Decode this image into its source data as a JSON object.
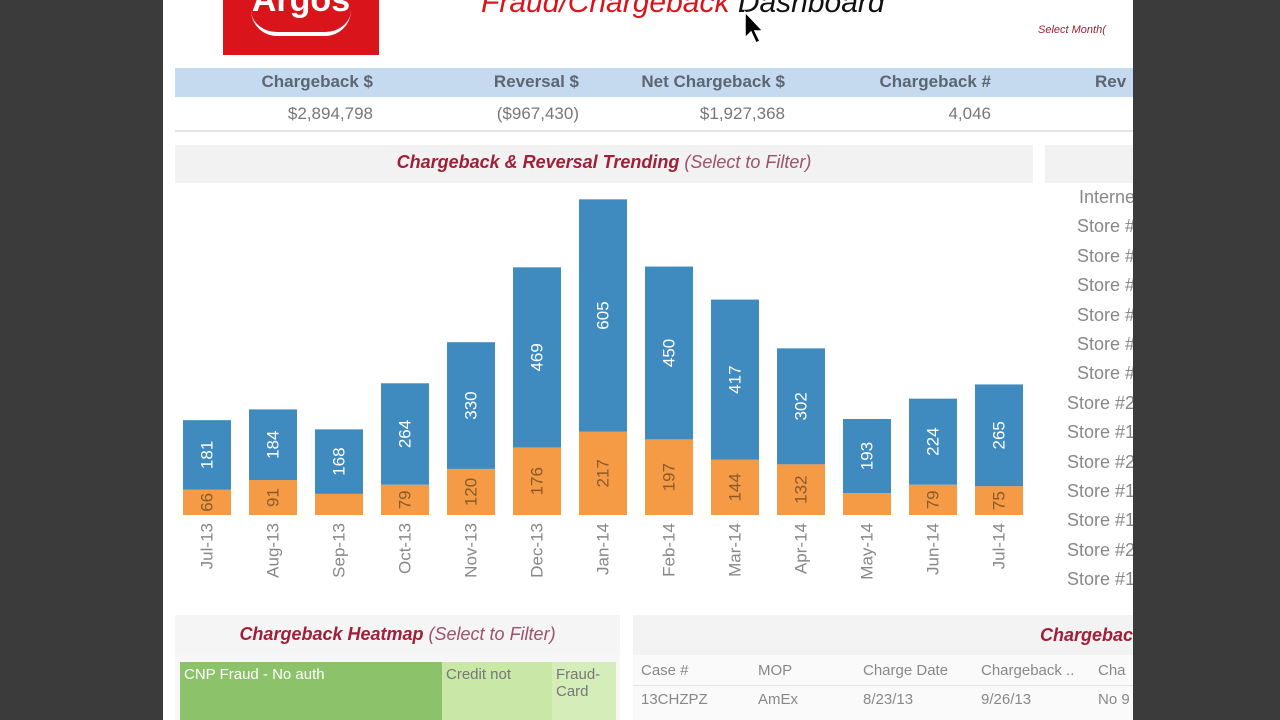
{
  "header": {
    "logo_text": "Argos",
    "title_red": "Fraud/Chargeback",
    "title_black": "Dashboard",
    "select_month": "Select Month("
  },
  "kpis": [
    {
      "label": "Chargeback $",
      "value": "$2,894,798"
    },
    {
      "label": "Reversal $",
      "value": "($967,430)"
    },
    {
      "label": "Net Chargeback $",
      "value": "$1,927,368"
    },
    {
      "label": "Chargeback #",
      "value": "4,046"
    },
    {
      "label": "Rev",
      "value": ""
    }
  ],
  "trend_panel": {
    "title": "Chargeback & Reversal Trending",
    "subtitle": "(Select to Filter)"
  },
  "colors": {
    "chargeback": "#3f8abf",
    "reversal": "#f59a45",
    "brand": "#d9141b",
    "title": "#a0203a"
  },
  "chart_data": {
    "type": "bar",
    "stacked": true,
    "categories": [
      "Jul-13",
      "Aug-13",
      "Sep-13",
      "Oct-13",
      "Nov-13",
      "Dec-13",
      "Jan-14",
      "Feb-14",
      "Mar-14",
      "Apr-14",
      "May-14",
      "Jun-14",
      "Jul-14"
    ],
    "series": [
      {
        "values": [
          66,
          91,
          55,
          79,
          120,
          176,
          217,
          197,
          144,
          132,
          57,
          79,
          75
        ],
        "color": "#f59a45"
      },
      {
        "values": [
          181,
          184,
          168,
          264,
          330,
          469,
          605,
          450,
          417,
          302,
          193,
          224,
          265
        ],
        "color": "#3f8abf"
      }
    ],
    "grid": false
  },
  "store_list": [
    "Interne",
    "Store #",
    "Store #",
    "Store #",
    "Store #",
    "Store #",
    "Store #",
    "Store #2",
    "Store #1",
    "Store #2",
    "Store #1",
    "Store #1",
    "Store #2",
    "Store #1"
  ],
  "heatmap": {
    "title": "Chargeback Heatmap",
    "subtitle": "(Select to Filter)",
    "cells": [
      {
        "label": "CNP Fraud - No auth",
        "color": "#8cc26a"
      },
      {
        "label": "Credit not",
        "color": "#c9e7a6"
      },
      {
        "label": "Fraud-Card",
        "color": "#d5edb8"
      }
    ]
  },
  "case_table": {
    "title": "Chargebac",
    "columns": [
      "Case #",
      "MOP",
      "Charge Date",
      "Chargeback ..",
      "Cha"
    ],
    "rows": [
      [
        "13CHZPZ",
        "AmEx",
        "8/23/13",
        "9/26/13",
        "No 9"
      ]
    ]
  }
}
